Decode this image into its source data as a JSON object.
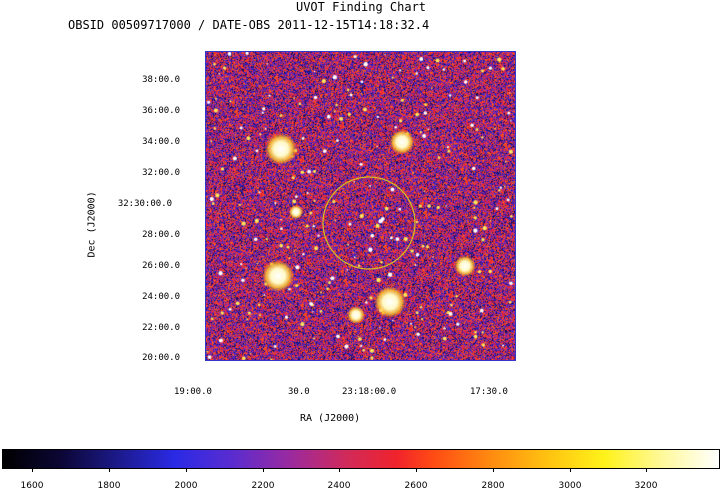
{
  "header": {
    "title": "UVOT Finding Chart",
    "subtitle": "OBSID 00509717000 / DATE-OBS 2011-12-15T14:18:32.4"
  },
  "axes": {
    "y_title": "Dec (J2000)",
    "x_title": "RA (J2000)",
    "y_ticks": [
      "38:00.0",
      "36:00.0",
      "34:00.0",
      "32:00.0",
      "32:30:00.0",
      "28:00.0",
      "26:00.0",
      "24:00.0",
      "22:00.0",
      "20:00.0"
    ],
    "x_ticks": [
      "19:00.0",
      "30.0",
      "23:18:00.0",
      "17:30.0"
    ]
  },
  "colorbar": {
    "labels": [
      "1600",
      "1800",
      "2000",
      "2200",
      "2400",
      "2600",
      "2800",
      "3000",
      "3200"
    ]
  },
  "colors": {
    "frame": "#3535c8",
    "circle": "#d8c020",
    "noise_low": "#2a1fa0",
    "noise_high": "#f0232c"
  },
  "icons": {
    "region": "source-circle-icon"
  }
}
